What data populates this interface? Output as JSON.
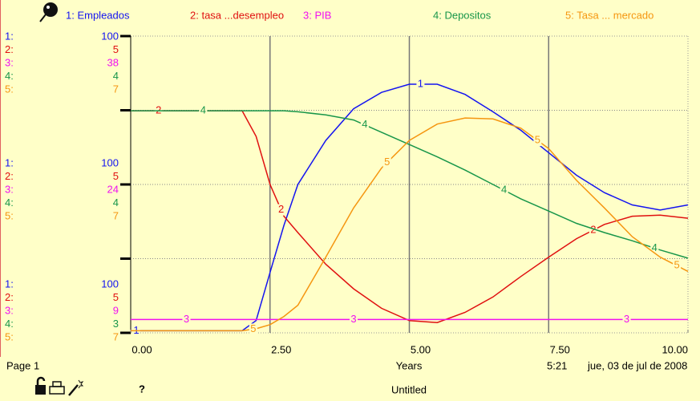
{
  "chart_data": {
    "type": "line",
    "xlabel": "Years",
    "x": [
      0,
      0.5,
      1,
      1.5,
      2,
      2.25,
      2.5,
      2.75,
      3,
      3.5,
      4,
      4.5,
      5,
      5.5,
      6,
      6.5,
      7,
      7.5,
      8,
      8.5,
      9,
      9.5,
      10
    ],
    "xlim": [
      0,
      10
    ],
    "xticks": [
      {
        "value": 0,
        "label": "0.00"
      },
      {
        "value": 2.5,
        "label": "2.50"
      },
      {
        "value": 5,
        "label": "5.00"
      },
      {
        "value": 7.5,
        "label": "7.50"
      },
      {
        "value": 10,
        "label": "10.00"
      }
    ],
    "ylim": [
      9,
      38
    ],
    "grid": true,
    "series": [
      {
        "key": "1",
        "name": "1: Empleados",
        "color": "#1414f0",
        "values": [
          9.2,
          9.2,
          9.2,
          9.2,
          9.2,
          10.2,
          14.9,
          19.5,
          23.5,
          27.8,
          30.9,
          32.5,
          33.3,
          33.3,
          32.3,
          30.6,
          28.8,
          26.6,
          24.4,
          22.7,
          21.5,
          21.0,
          21.5
        ]
      },
      {
        "key": "2",
        "name": "2: tasa ...desempleo",
        "color": "#e01010",
        "values": [
          30.7,
          30.7,
          30.7,
          30.7,
          30.7,
          28.2,
          23.5,
          20.4,
          18.8,
          15.7,
          13.3,
          11.4,
          10.2,
          10.0,
          11.0,
          12.5,
          14.5,
          16.4,
          18.2,
          19.6,
          20.4,
          20.5,
          20.2
        ]
      },
      {
        "key": "3",
        "name": "3: PIB",
        "color": "#f010f0",
        "values": [
          10.3,
          10.3,
          10.3,
          10.3,
          10.3,
          10.3,
          10.3,
          10.3,
          10.3,
          10.3,
          10.3,
          10.3,
          10.3,
          10.3,
          10.3,
          10.3,
          10.3,
          10.3,
          10.3,
          10.3,
          10.3,
          10.3,
          10.3
        ]
      },
      {
        "key": "4",
        "name": "4: Depositos",
        "color": "#18964a",
        "values": [
          30.7,
          30.7,
          30.7,
          30.7,
          30.7,
          30.7,
          30.7,
          30.7,
          30.6,
          30.3,
          29.8,
          28.6,
          27.4,
          26.2,
          24.9,
          23.5,
          22.1,
          20.9,
          19.7,
          18.8,
          18.0,
          17.1,
          16.3
        ]
      },
      {
        "key": "5",
        "name": "5: Tasa ...  mercado",
        "color": "#f59610",
        "values": [
          9.2,
          9.2,
          9.2,
          9.2,
          9.2,
          9.4,
          9.8,
          10.6,
          11.7,
          16.4,
          21.2,
          25.1,
          27.8,
          29.4,
          30.0,
          29.9,
          29.0,
          27.0,
          23.9,
          21.2,
          18.4,
          16.4,
          15.0
        ]
      }
    ],
    "scale_keys": [
      "1:",
      "2:",
      "3:",
      "4:",
      "5:"
    ],
    "scales": [
      [
        "100",
        "5",
        "38",
        "4",
        "7"
      ],
      [
        "100",
        "5",
        "24",
        "4",
        "7"
      ],
      [
        "100",
        "5",
        "9",
        "3",
        "7"
      ]
    ]
  },
  "footer": {
    "page": "Page 1",
    "time": "5:21",
    "date": "jue, 03 de jul de 2008",
    "window": "Untitled",
    "help": "?"
  }
}
